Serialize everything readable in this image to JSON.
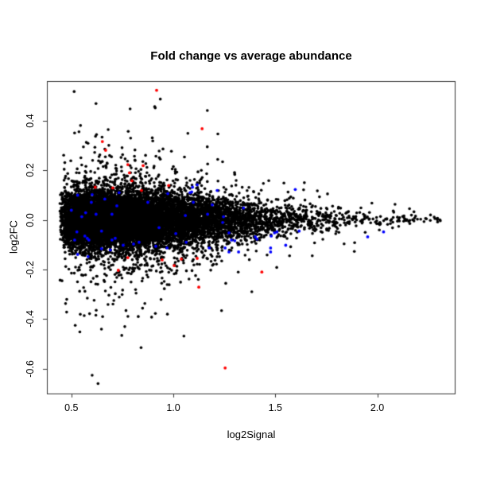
{
  "chart_data": {
    "type": "scatter",
    "title": "Fold change vs average abundance",
    "xlabel": "log2Signal",
    "ylabel": "log2FC",
    "xlim": [
      0.38,
      2.38
    ],
    "ylim": [
      -0.7,
      0.56
    ],
    "xticks": [
      0.5,
      1.0,
      1.5,
      2.0
    ],
    "xtick_labels": [
      "0.5",
      "1.0",
      "1.5",
      "2.0"
    ],
    "yticks": [
      -0.6,
      -0.4,
      -0.2,
      0.0,
      0.2,
      0.4
    ],
    "ytick_labels": [
      "-0.6",
      "-0.4",
      "-0.2",
      "0.0",
      "0.2",
      "0.4"
    ],
    "grid": false,
    "legend": "none",
    "background_color": "#ffffff",
    "axis_color": "#333333",
    "series": [
      {
        "name": "all-probes",
        "kind": "generated-cloud",
        "color": "#000000",
        "marker_radius": 1.8,
        "n": 12000,
        "seed": 42,
        "x_model": {
          "origin": 0.44,
          "scale": 0.205,
          "max": 2.31
        },
        "y_model": {
          "sigma_core": 0.054,
          "taper_start": 1.0,
          "x_end": 2.35,
          "sigma_min": 0.008,
          "tail_probs": [
            0.85,
            0.96,
            0.995
          ],
          "tail_mults": [
            1.0,
            2.0,
            3.4,
            5.2
          ],
          "y_clamp": 0.66
        }
      },
      {
        "name": "highlight-blue",
        "kind": "points",
        "color": "#0000FF",
        "marker_radius": 1.9,
        "points": [
          [
            0.531,
            0.1
          ],
          [
            0.598,
            0.071
          ],
          [
            0.5,
            0.039
          ],
          [
            0.551,
            0.013
          ],
          [
            0.57,
            0.029
          ],
          [
            0.621,
            0.023
          ],
          [
            0.699,
            0.023
          ],
          [
            0.875,
            0.071
          ],
          [
            0.734,
            0.11
          ],
          [
            0.973,
            0.106
          ],
          [
            0.527,
            -0.048
          ],
          [
            0.648,
            -0.045
          ],
          [
            0.516,
            -0.081
          ],
          [
            0.566,
            -0.065
          ],
          [
            0.578,
            -0.074
          ],
          [
            0.586,
            -0.081
          ],
          [
            0.648,
            -0.116
          ],
          [
            0.699,
            -0.081
          ],
          [
            0.715,
            -0.074
          ],
          [
            0.805,
            -0.097
          ],
          [
            0.832,
            -0.09
          ],
          [
            0.914,
            -0.106
          ],
          [
            0.969,
            -0.113
          ],
          [
            1.063,
            -0.09
          ],
          [
            1.082,
            0.11
          ],
          [
            0.531,
            -0.139
          ],
          [
            0.582,
            -0.148
          ],
          [
            1.09,
            0.113
          ],
          [
            1.098,
            0.071
          ],
          [
            1.215,
            0.119
          ],
          [
            1.168,
            0.023
          ],
          [
            1.246,
            0.013
          ],
          [
            1.242,
            -0.01
          ],
          [
            1.344,
            0.048
          ],
          [
            1.273,
            -0.052
          ],
          [
            1.285,
            -0.081
          ],
          [
            1.301,
            -0.084
          ],
          [
            1.402,
            -0.068
          ],
          [
            1.41,
            -0.077
          ],
          [
            1.48,
            -0.065
          ],
          [
            1.477,
            -0.113
          ],
          [
            1.508,
            -0.048
          ],
          [
            1.496,
            -0.052
          ],
          [
            1.176,
            -0.113
          ],
          [
            1.254,
            -0.113
          ],
          [
            1.273,
            -0.129
          ],
          [
            1.32,
            -0.129
          ],
          [
            1.617,
            -0.045
          ],
          [
            1.598,
            0.123
          ],
          [
            1.477,
            -0.129
          ],
          [
            1.117,
            0.142
          ],
          [
            1.953,
            -0.068
          ],
          [
            2.031,
            -0.048
          ],
          [
            1.094,
            0.132
          ],
          [
            0.602,
            0.102
          ],
          [
            0.664,
            0.084
          ],
          [
            0.723,
            0.057
          ],
          [
            0.93,
            -0.031
          ],
          [
            1.012,
            -0.055
          ],
          [
            1.059,
            0.018
          ],
          [
            1.191,
            0.061
          ],
          [
            1.551,
            -0.102
          ],
          [
            0.691,
            -0.121
          ],
          [
            0.754,
            -0.102
          ]
        ]
      },
      {
        "name": "highlight-red",
        "kind": "points",
        "color": "#FF0000",
        "marker_radius": 1.9,
        "points": [
          [
            0.918,
            0.523
          ],
          [
            1.141,
            0.368
          ],
          [
            0.652,
            0.316
          ],
          [
            0.668,
            0.281
          ],
          [
            0.777,
            0.223
          ],
          [
            0.852,
            0.219
          ],
          [
            0.785,
            0.19
          ],
          [
            0.797,
            0.158
          ],
          [
            0.617,
            0.132
          ],
          [
            0.703,
            0.129
          ],
          [
            0.844,
            0.119
          ],
          [
            0.977,
            0.139
          ],
          [
            0.777,
            -0.152
          ],
          [
            0.945,
            -0.161
          ],
          [
            1.039,
            -0.158
          ],
          [
            1.117,
            -0.155
          ],
          [
            0.73,
            -0.203
          ],
          [
            1.004,
            -0.184
          ],
          [
            1.125,
            -0.271
          ],
          [
            1.434,
            -0.21
          ],
          [
            1.254,
            -0.597
          ]
        ]
      }
    ]
  }
}
